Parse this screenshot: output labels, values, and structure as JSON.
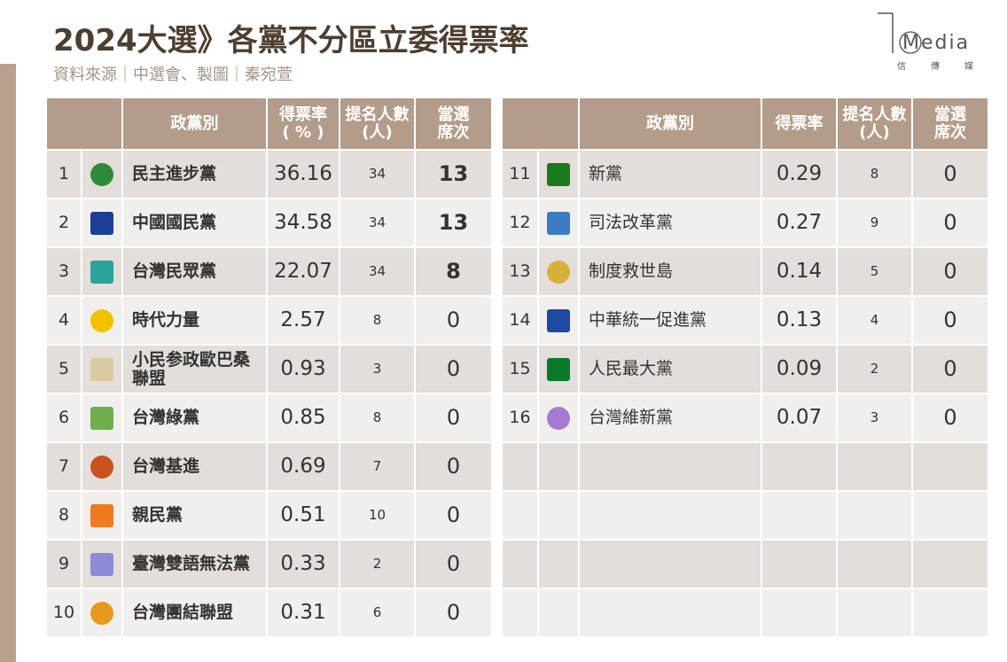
{
  "header": {
    "title": "2024大選》各黨不分區立委得票率",
    "source": "資料來源｜中選會、製圖｜秦宛萱",
    "logo": "Media",
    "logo_sub": "信傳媒"
  },
  "left_table": {
    "headers": [
      "政黨別",
      "得票率\n( % )",
      "提名人數\n(人)",
      "當選\n席次"
    ],
    "rows": [
      [
        1,
        "民主進步黨",
        36.16,
        34,
        13
      ],
      [
        2,
        "中國國民黨",
        34.58,
        34,
        13
      ],
      [
        3,
        "台灣民眾黨",
        22.07,
        34,
        8
      ],
      [
        4,
        "時代力量",
        2.57,
        8,
        0
      ],
      [
        5,
        "小民参政歐巴桑\n聯盟",
        0.93,
        3,
        0
      ],
      [
        6,
        "台灣綠黨",
        0.85,
        8,
        0
      ],
      [
        7,
        "台灣基進",
        0.69,
        7,
        0
      ],
      [
        8,
        "親民黨",
        0.51,
        10,
        0
      ],
      [
        9,
        "臺灣雙語無法黨",
        0.33,
        2,
        0
      ],
      [
        10,
        "台灣團結聯盟",
        0.31,
        6,
        0
      ]
    ]
  },
  "right_table": {
    "headers": [
      "政黨別",
      "得票率",
      "提名人數\n(人)",
      "當選\n席次"
    ],
    "rows": [
      [
        11,
        "新黨",
        0.29,
        8,
        0
      ],
      [
        12,
        "司法改革黨",
        0.27,
        9,
        0
      ],
      [
        13,
        "制度救世島",
        0.14,
        5,
        0
      ],
      [
        14,
        "中華統一促進黨",
        0.13,
        4,
        0
      ],
      [
        15,
        "人民最大黨",
        0.09,
        2,
        0
      ],
      [
        16,
        "台灣維新黨",
        0.07,
        3,
        0
      ]
    ]
  }
}
